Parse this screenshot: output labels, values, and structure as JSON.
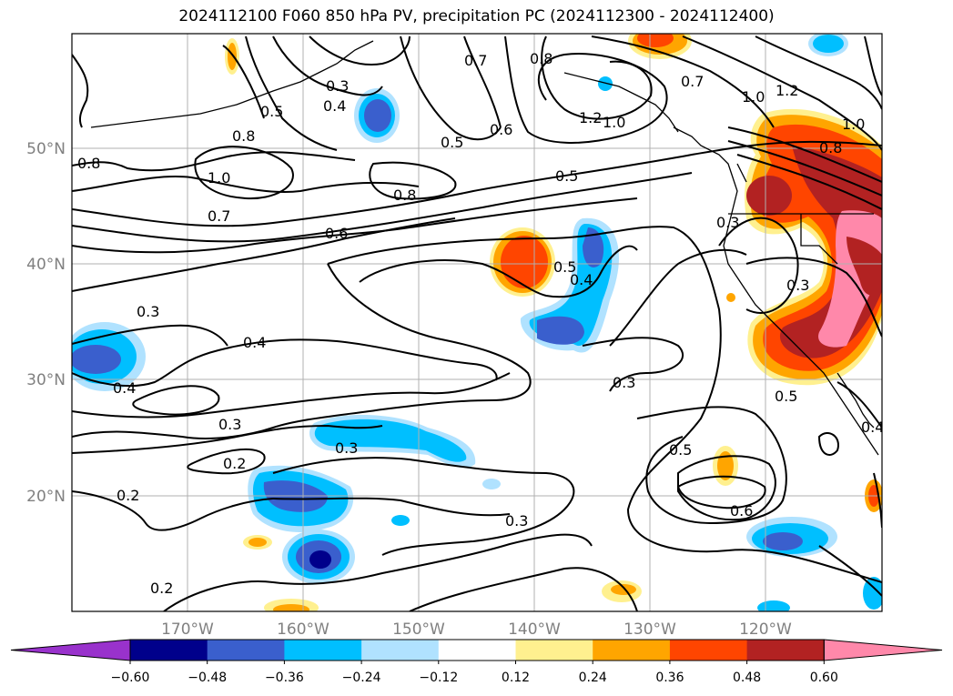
{
  "title": "2024112100 F060 850 hPa PV, precipitation PC (2024112300 - 2024112400)",
  "lat_labels": [
    "50°N",
    "40°N",
    "30°N",
    "20°N"
  ],
  "lon_labels": [
    "170°W",
    "160°W",
    "150°W",
    "140°W",
    "130°W",
    "120°W"
  ],
  "contour_labels": [
    "0.3",
    "0.4",
    "0.5",
    "0.8",
    "0.7",
    "0.8",
    "0.6",
    "1.2",
    "1.0",
    "0.7",
    "1.0",
    "1.2",
    "0.8",
    "1.0",
    "0.8",
    "0.5",
    "1.0",
    "0.8",
    "0.7",
    "0.6",
    "0.5",
    "0.3",
    "0.5",
    "0.4",
    "0.3",
    "0.3",
    "0.4",
    "0.4",
    "0.3",
    "0.3",
    "0.2",
    "0.3",
    "0.2",
    "0.3",
    "0.5",
    "0.6",
    "0.5",
    "0.4",
    "0.2"
  ],
  "colorbar": {
    "ticks": [
      "−0.60",
      "−0.48",
      "−0.36",
      "−0.24",
      "−0.12",
      "0.12",
      "0.24",
      "0.36",
      "0.48",
      "0.60"
    ],
    "colors": [
      "#9932cc",
      "#00008b",
      "#3a5fcd",
      "#00bfff",
      "#b0e2ff",
      "#ffffff",
      "#fff08f",
      "#ffa500",
      "#ff4500",
      "#b22222",
      "#ff88aa"
    ]
  },
  "fill_colors": {
    "light_blue": "#b0e2ff",
    "cyan": "#00bfff",
    "royal": "#3a5fcd",
    "navy": "#00008b",
    "yellow": "#fff08f",
    "orange": "#ffa500",
    "red_orange": "#ff4500",
    "brick": "#b22222",
    "pink": "#ff88aa"
  }
}
